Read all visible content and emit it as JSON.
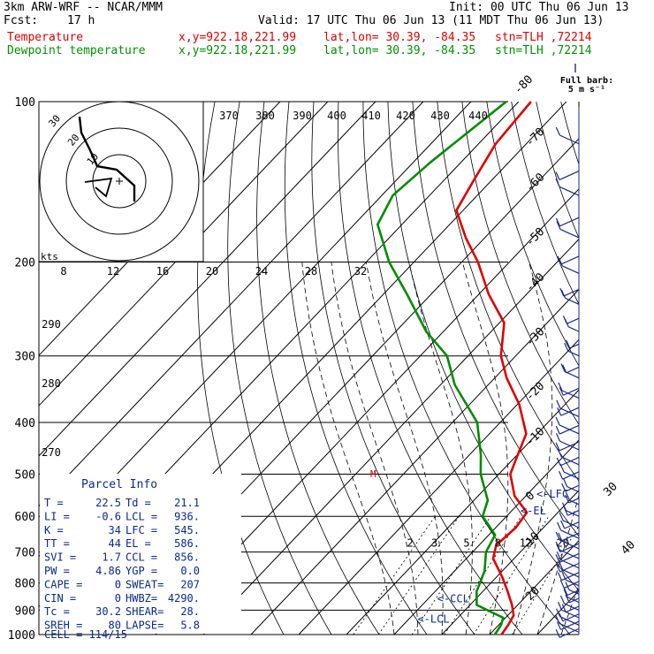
{
  "header": {
    "model": "3km ARW-WRF -- NCAR/MMM",
    "init": "Init: 00 UTC Thu 06 Jun 13",
    "fcst_label": "Fcst:",
    "fcst_value": "17 h",
    "valid": "Valid: 17 UTC Thu 06 Jun 13 (11 MDT Thu 06 Jun 13)",
    "temp_label": "Temperature",
    "temp_xy": "x,y=922.18,221.99",
    "temp_latlon": "lat,lon= 30.39, -84.35",
    "temp_stn": "stn=TLH ,72214",
    "dew_label": "Dewpoint temperature",
    "dew_xy": "x,y=922.18,221.99",
    "dew_latlon": "lat,lon= 30.39, -84.35",
    "dew_stn": "stn=TLH ,72214"
  },
  "colors": {
    "temperature": "#e00000",
    "dewpoint": "#008c00",
    "parcel_info": "#0a2a8a",
    "wind": "#1a2a8a",
    "grid": "#000000"
  },
  "full_barb": {
    "line1": "Full barb:",
    "line2": "5 m s⁻¹"
  },
  "parcel_info": {
    "title": "Parcel Info",
    "rows": [
      [
        "T  =",
        "22.5",
        "Td  =",
        "21.1"
      ],
      [
        "LI =",
        "-0.6",
        "LCL =",
        "936."
      ],
      [
        "K  =",
        "34",
        "LFC =",
        "545."
      ],
      [
        "TT =",
        "44",
        "EL  =",
        "586."
      ],
      [
        "SVI =",
        "1.7",
        "CCL =",
        "856."
      ],
      [
        "PW =",
        "4.86",
        "YGP =",
        "0.0"
      ],
      [
        "CAPE =",
        "0",
        "SWEAT=",
        "207"
      ],
      [
        "CIN =",
        "0",
        "HWBZ=",
        "4290."
      ],
      [
        "Tc =",
        "30.2",
        "SHEAR=",
        "28."
      ],
      [
        "SREH =",
        "80",
        "LAPSE=",
        "5.8"
      ]
    ],
    "cell": "CELL = 114/15"
  },
  "chart_data": {
    "type": "line",
    "title": "",
    "ylabel": "",
    "xlabel": "",
    "y_scale": "log-pressure",
    "pressure_levels": [
      100,
      200,
      300,
      400,
      500,
      600,
      700,
      800,
      900,
      1000
    ],
    "isotherm_labels": [
      "-80",
      "-70",
      "-60",
      "-50",
      "-40",
      "-30",
      "-20",
      "-10",
      "0",
      "10",
      "20",
      "30",
      "40"
    ],
    "theta_labels_top": [
      "370",
      "380",
      "390",
      "400",
      "410",
      "420",
      "430",
      "440"
    ],
    "theta_labels_left": [
      {
        "label": "290",
        "p": 262
      },
      {
        "label": "280",
        "p": 338
      },
      {
        "label": "270",
        "p": 455
      }
    ],
    "mixing_ratio_labels": [
      "2",
      "3",
      "5",
      "8",
      "12",
      "20"
    ],
    "parcel_markers": [
      {
        "label": "<-LFC",
        "p": 545
      },
      {
        "label": "<-EL",
        "p": 586
      },
      {
        "label": "<-CCL",
        "p": 856
      },
      {
        "label": "<-LCL",
        "p": 936
      }
    ],
    "series": [
      {
        "name": "Temperature",
        "points": [
          [
            100,
            -77.4
          ],
          [
            120,
            -76.4
          ],
          [
            140,
            -73.8
          ],
          [
            160,
            -71.4
          ],
          [
            180,
            -64.0
          ],
          [
            200,
            -56.6
          ],
          [
            230,
            -47.9
          ],
          [
            260,
            -39.0
          ],
          [
            300,
            -33.1
          ],
          [
            330,
            -27.5
          ],
          [
            370,
            -19.6
          ],
          [
            420,
            -12.3
          ],
          [
            470,
            -9.3
          ],
          [
            500,
            -7.6
          ],
          [
            550,
            -2.3
          ],
          [
            590,
            3.5
          ],
          [
            630,
            4.2
          ],
          [
            680,
            3.6
          ],
          [
            720,
            5.6
          ],
          [
            780,
            11.2
          ],
          [
            830,
            15.2
          ],
          [
            880,
            18.8
          ],
          [
            920,
            21.2
          ],
          [
            960,
            22.0
          ],
          [
            1000,
            22.5
          ]
        ]
      },
      {
        "name": "Dewpoint temperature",
        "points": [
          [
            100,
            -82.6
          ],
          [
            130,
            -86.4
          ],
          [
            150,
            -87.7
          ],
          [
            170,
            -85.1
          ],
          [
            200,
            -75.2
          ],
          [
            230,
            -65.0
          ],
          [
            270,
            -53.6
          ],
          [
            300,
            -44.4
          ],
          [
            340,
            -37.0
          ],
          [
            400,
            -24.8
          ],
          [
            460,
            -17.6
          ],
          [
            500,
            -13.8
          ],
          [
            560,
            -7.1
          ],
          [
            600,
            -5.0
          ],
          [
            650,
            1.3
          ],
          [
            700,
            2.8
          ],
          [
            760,
            6.3
          ],
          [
            830,
            8.7
          ],
          [
            880,
            11.4
          ],
          [
            930,
            19.5
          ],
          [
            960,
            20.5
          ],
          [
            1000,
            21.1
          ]
        ]
      }
    ],
    "wind_profile_speed_kts": [
      [
        100,
        18
      ],
      [
        200,
        22
      ],
      [
        300,
        34
      ],
      [
        400,
        30
      ],
      [
        500,
        26
      ],
      [
        600,
        20
      ],
      [
        700,
        14
      ],
      [
        800,
        10
      ],
      [
        900,
        8
      ],
      [
        1000,
        5
      ]
    ],
    "hodograph": {
      "axis_label": "kts",
      "ring_labels": [
        "10",
        "20",
        "30"
      ],
      "speed_ticks": [
        "8",
        "12",
        "16",
        "20",
        "24",
        "28",
        "32"
      ]
    }
  }
}
